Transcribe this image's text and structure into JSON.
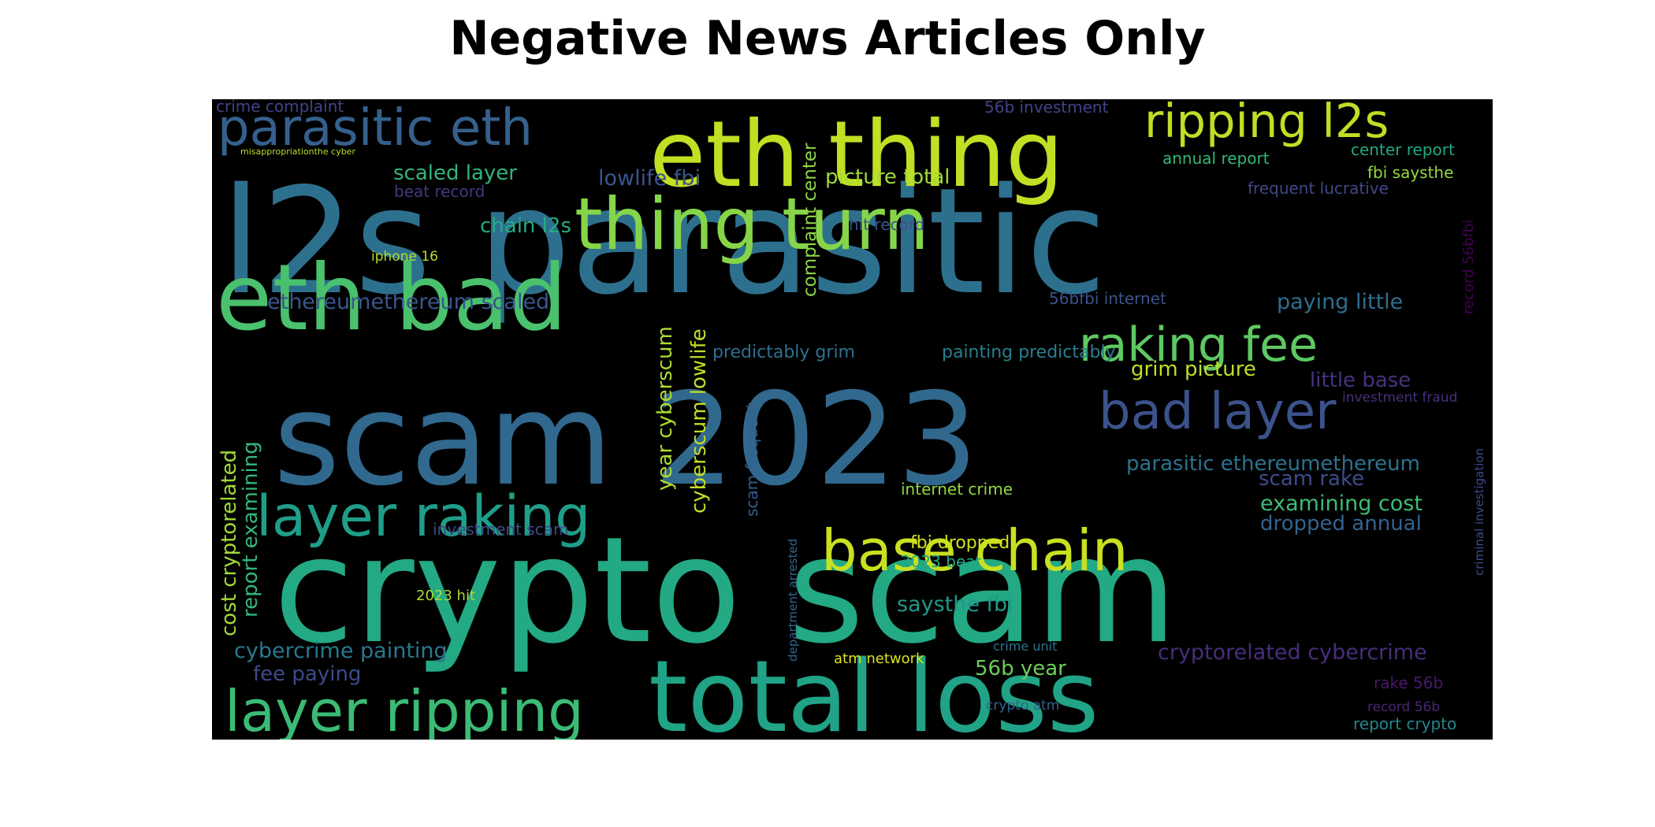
{
  "title": "Negative News Articles Only",
  "colors": {
    "background": "#000000",
    "title": "#000000"
  },
  "words": [
    {
      "text": "l2s parasitic",
      "weight": 1.0,
      "color": "#2d708e"
    },
    {
      "text": "crypto scam",
      "weight": 0.97,
      "color": "#23a983"
    },
    {
      "text": "scam 2023",
      "weight": 0.85,
      "color": "#31688e"
    },
    {
      "text": "total loss",
      "weight": 0.66,
      "color": "#20a386"
    },
    {
      "text": "eth thing",
      "weight": 0.6,
      "color": "#c2df23"
    },
    {
      "text": "eth bad",
      "weight": 0.6,
      "color": "#4ac16d"
    },
    {
      "text": "thing turn",
      "weight": 0.48,
      "color": "#86d549"
    },
    {
      "text": "layer ripping",
      "weight": 0.44,
      "color": "#3bbb75"
    },
    {
      "text": "base chain",
      "weight": 0.44,
      "color": "#c8e020"
    },
    {
      "text": "layer raking",
      "weight": 0.44,
      "color": "#1f9e89"
    },
    {
      "text": "parasitic eth",
      "weight": 0.4,
      "color": "#35608d"
    },
    {
      "text": "bad layer",
      "weight": 0.4,
      "color": "#3b528b"
    },
    {
      "text": "raking fee",
      "weight": 0.38,
      "color": "#5ec962"
    },
    {
      "text": "ripping l2s",
      "weight": 0.36,
      "color": "#bddf26"
    },
    {
      "text": "parasitic ethereumethereum",
      "weight": 0.17,
      "color": "#2c728e"
    },
    {
      "text": "cryptorelated cybercrime",
      "weight": 0.17,
      "color": "#472d7b"
    },
    {
      "text": "cost cryptorelated",
      "weight": 0.17,
      "color": "#a2da37"
    },
    {
      "text": "report examining",
      "weight": 0.17,
      "color": "#32b67a"
    },
    {
      "text": "year cyberscum",
      "weight": 0.17,
      "color": "#addc30"
    },
    {
      "text": "cyberscum lowlife",
      "weight": 0.17,
      "color": "#c0df25"
    },
    {
      "text": "ethereumethereum scaled",
      "weight": 0.16,
      "color": "#39568c"
    },
    {
      "text": "lowlife fbi",
      "weight": 0.16,
      "color": "#39558c"
    },
    {
      "text": "cybercrime painting",
      "weight": 0.16,
      "color": "#2a788e"
    },
    {
      "text": "examining cost",
      "weight": 0.16,
      "color": "#3dbc74"
    },
    {
      "text": "paying little",
      "weight": 0.16,
      "color": "#2e6e8e"
    },
    {
      "text": "scaled layer",
      "weight": 0.16,
      "color": "#31b57b"
    },
    {
      "text": "chain l2s",
      "weight": 0.16,
      "color": "#25ac82"
    },
    {
      "text": "picture total",
      "weight": 0.16,
      "color": "#9fda3a"
    },
    {
      "text": "grim picture",
      "weight": 0.16,
      "color": "#bddf26"
    },
    {
      "text": "dropped annual",
      "weight": 0.16,
      "color": "#33638d"
    },
    {
      "text": "56b year",
      "weight": 0.16,
      "color": "#6ccd5a"
    },
    {
      "text": "saysthe fbi",
      "weight": 0.16,
      "color": "#1f988b"
    },
    {
      "text": "fee paying",
      "weight": 0.15,
      "color": "#3e4a89"
    },
    {
      "text": "little base",
      "weight": 0.14,
      "color": "#46327e"
    },
    {
      "text": "scam rake",
      "weight": 0.14,
      "color": "#3e4c8a"
    },
    {
      "text": "complaint center",
      "weight": 0.12,
      "color": "#8bd646"
    },
    {
      "text": "scam frequent",
      "weight": 0.11,
      "color": "#355f8d"
    },
    {
      "text": "predictably grim",
      "weight": 0.11,
      "color": "#2d708e"
    },
    {
      "text": "painting predictably",
      "weight": 0.11,
      "color": "#277f8e"
    },
    {
      "text": "fbi dropped",
      "weight": 0.11,
      "color": "#d2e21b"
    },
    {
      "text": "56b investment",
      "weight": 0.1,
      "color": "#404387"
    },
    {
      "text": "crime complaint",
      "weight": 0.1,
      "color": "#414487"
    },
    {
      "text": "beat record",
      "weight": 0.1,
      "color": "#453781"
    },
    {
      "text": "frequent lucrative",
      "weight": 0.1,
      "color": "#3f4788"
    },
    {
      "text": "hit record",
      "weight": 0.1,
      "color": "#3b528b"
    },
    {
      "text": "56bfbi internet",
      "weight": 0.1,
      "color": "#3a538b"
    },
    {
      "text": "internet crime",
      "weight": 0.1,
      "color": "#90d743"
    },
    {
      "text": "investment scam",
      "weight": 0.1,
      "color": "#3e4989"
    },
    {
      "text": "2023 beat",
      "weight": 0.1,
      "color": "#22a785"
    },
    {
      "text": "annual report",
      "weight": 0.1,
      "color": "#35b779"
    },
    {
      "text": "center report",
      "weight": 0.1,
      "color": "#23a983"
    },
    {
      "text": "fbi saysthe",
      "weight": 0.1,
      "color": "#93d741"
    },
    {
      "text": "report crypto",
      "weight": 0.1,
      "color": "#24868e"
    },
    {
      "text": "investment fraud",
      "weight": 0.09,
      "color": "#46307e"
    },
    {
      "text": "rake 56b",
      "weight": 0.09,
      "color": "#48186a"
    },
    {
      "text": "record 56b",
      "weight": 0.09,
      "color": "#482576"
    },
    {
      "text": "record 56bfbi",
      "weight": 0.09,
      "color": "#440154"
    },
    {
      "text": "2023 hit",
      "weight": 0.08,
      "color": "#addc30"
    },
    {
      "text": "iphone 16",
      "weight": 0.08,
      "color": "#b5de2b"
    },
    {
      "text": "atm network",
      "weight": 0.08,
      "color": "#dde318"
    },
    {
      "text": "crypto atm",
      "weight": 0.08,
      "color": "#33638d"
    },
    {
      "text": "crime unit",
      "weight": 0.07,
      "color": "#2c718e"
    },
    {
      "text": "department arrested",
      "weight": 0.07,
      "color": "#31668e"
    },
    {
      "text": "criminal investigation",
      "weight": 0.07,
      "color": "#3e4a89"
    },
    {
      "text": "misappropriationthe cyber",
      "weight": 0.05,
      "color": "#b8de29"
    }
  ]
}
